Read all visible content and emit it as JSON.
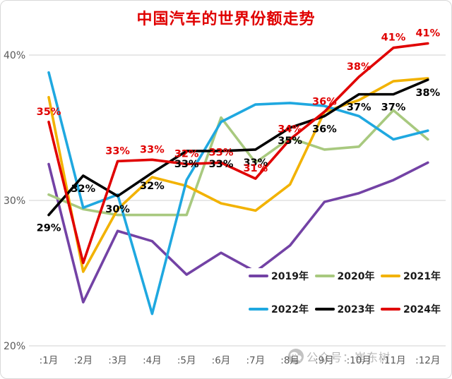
{
  "chart_data": {
    "type": "line",
    "title": "中国汽车的世界份额走势",
    "title_color": "#e00000",
    "xlabel": "",
    "ylabel": "",
    "ylim": [
      18.5,
      42.5
    ],
    "grid": "horizontal",
    "legend_position": "inset-bottom-right-two-rows",
    "categories": [
      ":1月",
      ":2月",
      ":3月",
      ":4月",
      ":5月",
      ":6月",
      ":7月",
      ":8月",
      ":9月",
      ":10月",
      ":11月",
      ":12月"
    ],
    "y_ticks": [
      {
        "label": "40%",
        "value": 40
      },
      {
        "label": "30%",
        "value": 30
      },
      {
        "label": "20%",
        "value": 20
      }
    ],
    "series": [
      {
        "name": "2019年",
        "color": "#7342a5",
        "values": [
          32.5,
          23.0,
          27.9,
          27.2,
          24.9,
          26.4,
          25.1,
          26.9,
          29.9,
          30.5,
          31.4,
          32.6
        ],
        "labels": null,
        "label_side": null
      },
      {
        "name": "2020年",
        "color": "#a8c97f",
        "values": [
          30.4,
          29.4,
          29.0,
          29.0,
          29.0,
          35.7,
          32.6,
          34.3,
          33.5,
          33.7,
          36.2,
          34.2
        ],
        "labels": null,
        "label_side": null
      },
      {
        "name": "2021年",
        "color": "#f2b200",
        "values": [
          37.1,
          25.1,
          29.4,
          31.6,
          31.0,
          29.8,
          29.3,
          31.1,
          36.1,
          36.9,
          38.2,
          38.4
        ],
        "labels": null,
        "label_side": null
      },
      {
        "name": "2022年",
        "color": "#1fa8e0",
        "values": [
          38.8,
          29.5,
          30.4,
          22.2,
          31.4,
          35.4,
          36.6,
          36.7,
          36.5,
          35.8,
          34.2,
          34.8
        ],
        "labels": null,
        "label_side": null
      },
      {
        "name": "2023年",
        "color": "#000000",
        "values": [
          29.0,
          31.7,
          30.3,
          31.9,
          33.4,
          33.4,
          33.5,
          35.0,
          35.8,
          37.3,
          37.3,
          38.3
        ],
        "labels": [
          "29%",
          "32%",
          "30%",
          "32%",
          "33%",
          "33%",
          "33%",
          "35%",
          "36%",
          "37%",
          "37%",
          "38%"
        ],
        "label_side": "below"
      },
      {
        "name": "2024年",
        "color": "#e00000",
        "values": [
          35.4,
          25.7,
          32.7,
          32.8,
          32.5,
          32.6,
          31.5,
          34.2,
          36.1,
          38.5,
          40.5,
          40.8
        ],
        "labels": [
          "35%",
          "",
          "33%",
          "33%",
          "32%",
          "33%",
          "31%",
          "34%",
          "36%",
          "38%",
          "41%",
          "41%"
        ],
        "label_side": "above"
      }
    ],
    "legend_rows": [
      [
        "2019年",
        "2020年",
        "2021年"
      ],
      [
        "2022年",
        "2023年",
        "2024年"
      ]
    ]
  },
  "watermark": {
    "label": "公众号：崔东树",
    "icon": "wechat-icon"
  }
}
